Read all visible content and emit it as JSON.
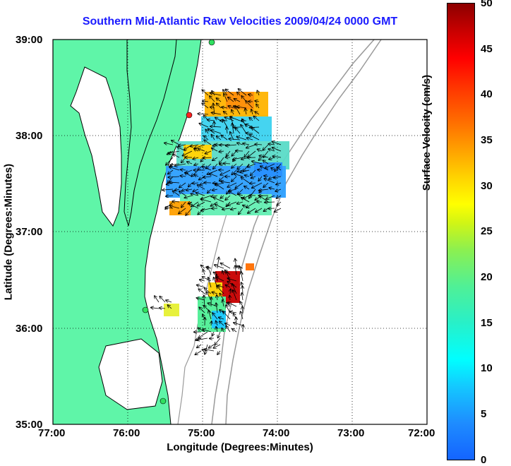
{
  "title": "Southern Mid-Atlantic Raw Velocities 2009/04/24 0000 GMT",
  "x_axis": {
    "label": "Longitude (Degrees:Minutes)",
    "ticks": [
      "77:00",
      "76:00",
      "75:00",
      "74:00",
      "73:00",
      "72:00"
    ]
  },
  "y_axis": {
    "label": "Latitude (Degrees:Minutes)",
    "ticks": [
      "39:00",
      "38:00",
      "37:00",
      "36:00",
      "35:00"
    ]
  },
  "colorbar": {
    "label": "Surface Velocity (cm/s)",
    "ticks": [
      "50",
      "45",
      "40",
      "35",
      "30",
      "25",
      "20",
      "15",
      "10",
      "5",
      "0"
    ],
    "min": 0,
    "max": 50
  },
  "colors": {
    "land": "#5ff5a8",
    "title": "#1a1aff",
    "bathymetry": "#9a9a9a"
  }
}
